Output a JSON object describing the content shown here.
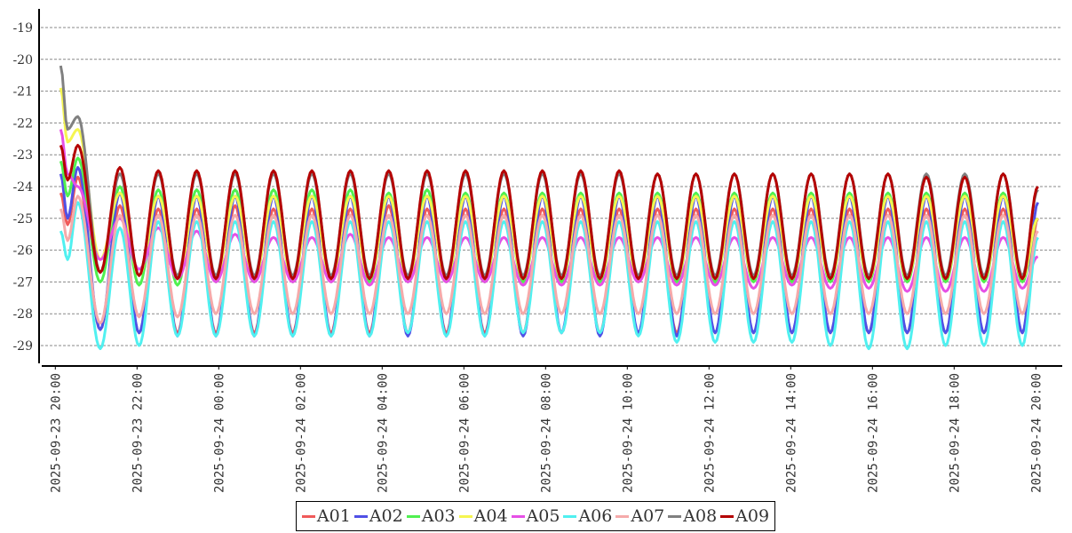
{
  "chart_data": {
    "type": "line",
    "title": "",
    "xlabel": "",
    "ylabel": "",
    "ylim": [
      -29.61,
      -18.41
    ],
    "xlim_hours": [
      -0.02,
      24.5
    ],
    "y_ticks": [
      "-19",
      "-20",
      "-21",
      "-22",
      "-23",
      "-24",
      "-25",
      "-26",
      "-27",
      "-28",
      "-29"
    ],
    "y_tick_values": [
      -19,
      -20,
      -21,
      -22,
      -23,
      -24,
      -25,
      -26,
      -27,
      -28,
      -29
    ],
    "x_ticks": [
      "2025-09-23  20:00",
      "2025-09-23  22:00",
      "2025-09-24  00:00",
      "2025-09-24  02:00",
      "2025-09-24  04:00",
      "2025-09-24  06:00",
      "2025-09-24  08:00",
      "2025-09-24  10:00",
      "2025-09-24  12:00",
      "2025-09-24  14:00",
      "2025-09-24  16:00",
      "2025-09-24  18:00",
      "2025-09-24  20:00"
    ],
    "x_tick_hours": [
      0,
      2,
      4,
      6,
      8,
      10,
      12,
      14,
      16,
      18,
      20,
      22,
      24
    ],
    "x_unit": "hours since 2025-09-23 20:00",
    "grid": "horizontal dashed",
    "legend_position": "bottom-center",
    "start_hours": [
      0.13,
      0.3,
      0.55,
      1.1
    ],
    "first_peak_hour": 1.58,
    "half_period_hours": 0.47,
    "end_hour": 24.05,
    "series": [
      {
        "name": "A01",
        "color": "#f05a5a",
        "start": [
          -24.2,
          -25.2,
          -23.7,
          -28.5
        ],
        "peaks": [
          -24.6,
          -24.7,
          -24.7,
          -24.6,
          -24.7,
          -24.7,
          -24.7,
          -24.6,
          -24.7,
          -24.7,
          -24.7,
          -24.7,
          -24.7,
          -24.7,
          -24.7,
          -24.7,
          -24.7,
          -24.7,
          -24.7,
          -24.7,
          -24.7,
          -24.7,
          -24.7,
          -24.7
        ],
        "troughs": [
          -28.6,
          -28.6,
          -28.6,
          -28.6,
          -28.6,
          -28.6,
          -28.6,
          -28.6,
          -28.6,
          -28.6,
          -28.6,
          -28.6,
          -28.6,
          -28.6,
          -28.6,
          -28.6,
          -28.6,
          -28.6,
          -28.6,
          -28.6,
          -28.6,
          -28.6,
          -28.6,
          -28.6
        ],
        "end": -25.0
      },
      {
        "name": "A02",
        "color": "#5050e6",
        "start": [
          -23.6,
          -25.0,
          -23.4,
          -28.5
        ],
        "peaks": [
          -24.2,
          -24.3,
          -24.3,
          -24.3,
          -24.3,
          -24.3,
          -24.3,
          -24.3,
          -24.3,
          -24.3,
          -24.3,
          -24.3,
          -24.3,
          -24.3,
          -24.3,
          -24.3,
          -24.3,
          -24.3,
          -24.3,
          -24.3,
          -24.3,
          -24.3,
          -24.3,
          -24.3
        ],
        "troughs": [
          -28.6,
          -28.7,
          -28.7,
          -28.7,
          -28.7,
          -28.7,
          -28.7,
          -28.7,
          -28.7,
          -28.7,
          -28.7,
          -28.6,
          -28.7,
          -28.6,
          -28.7,
          -28.6,
          -28.6,
          -28.6,
          -28.6,
          -28.6,
          -28.6,
          -28.6,
          -28.6,
          -28.6
        ],
        "end": -24.5
      },
      {
        "name": "A03",
        "color": "#50f050",
        "start": [
          -23.2,
          -24.3,
          -23.1,
          -27.0
        ],
        "peaks": [
          -24.0,
          -24.1,
          -24.1,
          -24.1,
          -24.1,
          -24.1,
          -24.1,
          -24.2,
          -24.1,
          -24.2,
          -24.2,
          -24.2,
          -24.2,
          -24.2,
          -24.2,
          -24.2,
          -24.2,
          -24.2,
          -24.2,
          -24.2,
          -24.2,
          -24.2,
          -24.2,
          -24.2
        ],
        "troughs": [
          -27.1,
          -27.1,
          -27.0,
          -27.0,
          -27.0,
          -27.0,
          -27.0,
          -27.0,
          -27.0,
          -27.0,
          -27.0,
          -27.0,
          -27.0,
          -27.0,
          -27.0,
          -27.0,
          -27.0,
          -27.0,
          -27.0,
          -27.0,
          -27.0,
          -27.0,
          -27.0,
          -27.0
        ],
        "end": -25.0
      },
      {
        "name": "A04",
        "color": "#f5f550",
        "start": [
          -20.9,
          -22.6,
          -22.2,
          -26.3
        ],
        "peaks": [
          -24.2,
          -24.3,
          -24.3,
          -24.3,
          -24.3,
          -24.3,
          -24.3,
          -24.3,
          -24.3,
          -24.3,
          -24.3,
          -24.3,
          -24.3,
          -24.3,
          -24.3,
          -24.3,
          -24.3,
          -24.3,
          -24.3,
          -24.3,
          -24.3,
          -24.3,
          -24.3,
          -24.3
        ],
        "troughs": [
          -26.8,
          -26.9,
          -26.9,
          -26.9,
          -26.9,
          -26.9,
          -26.9,
          -26.9,
          -26.9,
          -26.9,
          -26.9,
          -26.9,
          -26.9,
          -26.9,
          -26.9,
          -26.9,
          -26.9,
          -26.9,
          -26.9,
          -26.9,
          -26.9,
          -26.9,
          -26.9,
          -26.9
        ],
        "end": -25.0
      },
      {
        "name": "A05",
        "color": "#e650e6",
        "start": [
          -22.2,
          -23.6,
          -24.0,
          -26.3
        ],
        "peaks": [
          -25.0,
          -25.3,
          -25.4,
          -25.5,
          -25.6,
          -25.6,
          -25.5,
          -25.6,
          -25.6,
          -25.6,
          -25.6,
          -25.6,
          -25.6,
          -25.6,
          -25.6,
          -25.6,
          -25.6,
          -25.6,
          -25.6,
          -25.6,
          -25.6,
          -25.6,
          -25.6,
          -25.6
        ],
        "troughs": [
          -26.6,
          -26.9,
          -27.0,
          -27.0,
          -27.0,
          -27.0,
          -27.1,
          -27.0,
          -27.0,
          -27.0,
          -27.1,
          -27.1,
          -27.1,
          -27.0,
          -27.1,
          -27.1,
          -27.2,
          -27.1,
          -27.2,
          -27.2,
          -27.3,
          -27.3,
          -27.3,
          -27.2
        ],
        "end": -26.2
      },
      {
        "name": "A06",
        "color": "#50f0f0",
        "start": [
          -25.4,
          -26.3,
          -24.5,
          -29.1
        ],
        "peaks": [
          -25.3,
          -25.1,
          -25.1,
          -25.1,
          -25.1,
          -25.1,
          -25.1,
          -25.1,
          -25.1,
          -25.1,
          -25.1,
          -25.1,
          -25.1,
          -25.1,
          -25.1,
          -25.1,
          -25.1,
          -25.1,
          -25.1,
          -25.1,
          -25.1,
          -25.1,
          -25.1,
          -25.1
        ],
        "troughs": [
          -29.0,
          -28.7,
          -28.7,
          -28.7,
          -28.7,
          -28.7,
          -28.7,
          -28.6,
          -28.7,
          -28.7,
          -28.6,
          -28.6,
          -28.6,
          -28.7,
          -28.9,
          -28.9,
          -28.9,
          -28.9,
          -29.0,
          -29.1,
          -29.1,
          -29.0,
          -29.0,
          -29.0
        ],
        "end": -25.6
      },
      {
        "name": "A07",
        "color": "#f5aaaa",
        "start": [
          -24.7,
          -25.7,
          -24.3,
          -28.3
        ],
        "peaks": [
          -24.9,
          -24.9,
          -24.9,
          -24.9,
          -24.9,
          -24.9,
          -24.9,
          -24.9,
          -24.9,
          -24.9,
          -24.9,
          -24.9,
          -24.9,
          -24.9,
          -24.9,
          -24.9,
          -24.9,
          -24.9,
          -24.9,
          -24.9,
          -24.9,
          -24.9,
          -24.9,
          -24.9
        ],
        "troughs": [
          -28.1,
          -28.1,
          -28.0,
          -28.0,
          -28.0,
          -28.0,
          -28.0,
          -28.0,
          -28.0,
          -28.0,
          -28.0,
          -28.0,
          -28.0,
          -28.0,
          -28.0,
          -28.0,
          -28.0,
          -28.0,
          -28.0,
          -28.0,
          -28.0,
          -28.0,
          -28.0,
          -28.0
        ],
        "end": -25.4
      },
      {
        "name": "A08",
        "color": "#808080",
        "start": [
          -20.2,
          -22.2,
          -21.8,
          -26.7
        ],
        "peaks": [
          -23.6,
          -23.6,
          -23.6,
          -23.6,
          -23.6,
          -23.6,
          -23.6,
          -23.6,
          -23.6,
          -23.6,
          -23.6,
          -23.6,
          -23.6,
          -23.6,
          -23.6,
          -23.6,
          -23.6,
          -23.6,
          -23.6,
          -23.6,
          -23.6,
          -23.6,
          -23.6,
          -23.6
        ],
        "troughs": [
          -26.8,
          -26.8,
          -26.8,
          -26.8,
          -26.8,
          -26.8,
          -26.8,
          -26.8,
          -26.8,
          -26.8,
          -26.8,
          -26.8,
          -26.8,
          -26.8,
          -26.8,
          -26.8,
          -26.8,
          -26.8,
          -26.8,
          -26.8,
          -26.8,
          -26.8,
          -26.8,
          -26.8
        ],
        "end": -24.1
      },
      {
        "name": "A09",
        "color": "#b40000",
        "start": [
          -22.7,
          -23.8,
          -22.7,
          -26.7
        ],
        "peaks": [
          -23.4,
          -23.5,
          -23.5,
          -23.5,
          -23.5,
          -23.5,
          -23.5,
          -23.5,
          -23.5,
          -23.5,
          -23.5,
          -23.5,
          -23.5,
          -23.5,
          -23.6,
          -23.6,
          -23.6,
          -23.6,
          -23.6,
          -23.6,
          -23.6,
          -23.7,
          -23.7,
          -23.6
        ],
        "troughs": [
          -26.8,
          -26.9,
          -26.9,
          -26.9,
          -26.9,
          -26.9,
          -26.9,
          -26.9,
          -26.9,
          -26.9,
          -26.9,
          -26.9,
          -26.9,
          -26.9,
          -26.9,
          -26.9,
          -26.9,
          -26.9,
          -26.9,
          -26.9,
          -26.9,
          -26.9,
          -26.9,
          -26.9
        ],
        "end": -24.0
      }
    ]
  }
}
